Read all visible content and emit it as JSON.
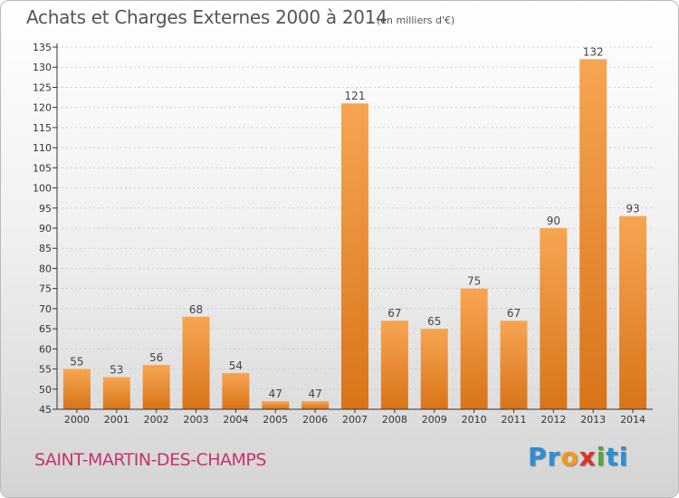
{
  "title": "Achats et Charges Externes 2000 à 2014",
  "unit": "(en milliers d'€)",
  "commune": "SAINT-MARTIN-DES-CHAMPS",
  "logo": {
    "letters": [
      "P",
      "r",
      "o",
      "x",
      "i",
      "t",
      "i"
    ],
    "colors": [
      "#2c8fd6",
      "#2c8fd6",
      "#f29a1c",
      "#d8352a",
      "#4fa93c",
      "#2c8fd6",
      "#2c8fd6"
    ]
  },
  "colors": {
    "bar_light": "#f7a553",
    "bar_dark": "#d87418",
    "axis": "#333333",
    "grid": "#cfcfcf"
  },
  "chart_data": {
    "type": "bar",
    "title": "Achats et Charges Externes 2000 à 2014",
    "categories": [
      "2000",
      "2001",
      "2002",
      "2003",
      "2004",
      "2005",
      "2006",
      "2007",
      "2008",
      "2009",
      "2010",
      "2011",
      "2012",
      "2013",
      "2014"
    ],
    "values": [
      55,
      53,
      56,
      68,
      54,
      47,
      47,
      121,
      67,
      65,
      75,
      67,
      90,
      132,
      93
    ],
    "data_labels": [
      "55",
      "53",
      "56",
      "68",
      "54",
      "47",
      "47",
      "121",
      "67",
      "65",
      "75",
      "67",
      "90",
      "132",
      "93"
    ],
    "yticks": [
      "45",
      "50",
      "55",
      "60",
      "65",
      "70",
      "75",
      "80",
      "85",
      "90",
      "95",
      "100",
      "105",
      "110",
      "115",
      "120",
      "125",
      "130",
      "135"
    ],
    "ylim": [
      45,
      135
    ],
    "grid": "horizontal-dotted",
    "legend": "none"
  }
}
